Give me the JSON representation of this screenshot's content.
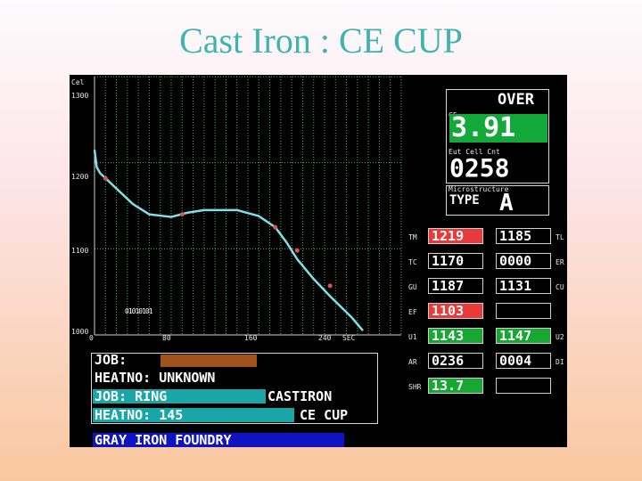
{
  "slide": {
    "title": "Cast Iron : CE CUP"
  },
  "graph": {
    "y_unit": "Cel",
    "y_ticks": [
      "1300",
      "1200",
      "1100",
      "1000"
    ],
    "x_ticks": [
      "0",
      "80",
      "160",
      "240"
    ],
    "x_unit": "SEC",
    "overlay_text": "01010101"
  },
  "chart_data": {
    "type": "line",
    "xlabel": "SEC",
    "ylabel": "Cel",
    "xlim": [
      0,
      280
    ],
    "ylim": [
      1000,
      1300
    ],
    "series": [
      {
        "x": [
          0,
          2,
          5,
          10,
          20,
          35,
          50,
          70,
          85,
          100,
          130,
          150,
          165,
          175,
          185,
          200,
          215,
          235,
          245
        ],
        "y": [
          1215,
          1195,
          1188,
          1182,
          1170,
          1152,
          1140,
          1137,
          1142,
          1145,
          1145,
          1138,
          1125,
          1108,
          1088,
          1065,
          1045,
          1020,
          1005
        ]
      }
    ],
    "markers": [
      {
        "x": 10,
        "y": 1182
      },
      {
        "x": 80,
        "y": 1140
      },
      {
        "x": 165,
        "y": 1125
      },
      {
        "x": 185,
        "y": 1098
      },
      {
        "x": 215,
        "y": 1057
      }
    ]
  },
  "panel": {
    "status": "OVER",
    "ce_label": "CE",
    "ce_value": "3.91",
    "cell_label": "Eut Cell Cnt",
    "cell_value": "0258",
    "micro_label": "Microstructure",
    "micro_type": "TYPE",
    "micro_value": "A"
  },
  "readings": [
    {
      "left_tag": "TM",
      "left": "1219",
      "left_color": "#e83a3a",
      "right": "1185",
      "right_color": "#000000",
      "right_tag": "TL"
    },
    {
      "left_tag": "TC",
      "left": "1170",
      "left_color": "#000000",
      "right": "0000",
      "right_color": "#000000",
      "right_tag": "ER"
    },
    {
      "left_tag": "GU",
      "left": "1187",
      "left_color": "#000000",
      "right": "1131",
      "right_color": "#000000",
      "right_tag": "CU"
    },
    {
      "left_tag": "EF",
      "left": "1103",
      "left_color": "#e83a3a",
      "right": "",
      "right_color": "#000000",
      "right_tag": ""
    },
    {
      "left_tag": "U1",
      "left": "1143",
      "left_color": "#16a832",
      "right": "1147",
      "right_color": "#16a832",
      "right_tag": "U2"
    },
    {
      "left_tag": "AR",
      "left": "0236",
      "left_color": "#000000",
      "right": "0004",
      "right_color": "#000000",
      "right_tag": "DI"
    },
    {
      "left_tag": "SHR",
      "left": "13.7",
      "left_color": "#16a832",
      "right": "",
      "right_color": "#000000",
      "right_tag": ""
    }
  ],
  "job_info": {
    "job_label": "JOB:",
    "heatno_label": "HEATNO: UNKNOWN",
    "job_ring": "JOB: RING",
    "castiron": "CASTIRON",
    "heatno_145": "HEATNO: 145",
    "ce_cup": "CE CUP",
    "foundry": "GRAY IRON FOUNDRY"
  },
  "colors": {
    "curve": "#7fe0e8",
    "grid": "#4fb050",
    "marker": "#e05050",
    "teal_bar": "#1aa6a6",
    "brown_bar": "#a0521c",
    "blue_bar": "#1014c0",
    "title": "#3fb3b0"
  }
}
